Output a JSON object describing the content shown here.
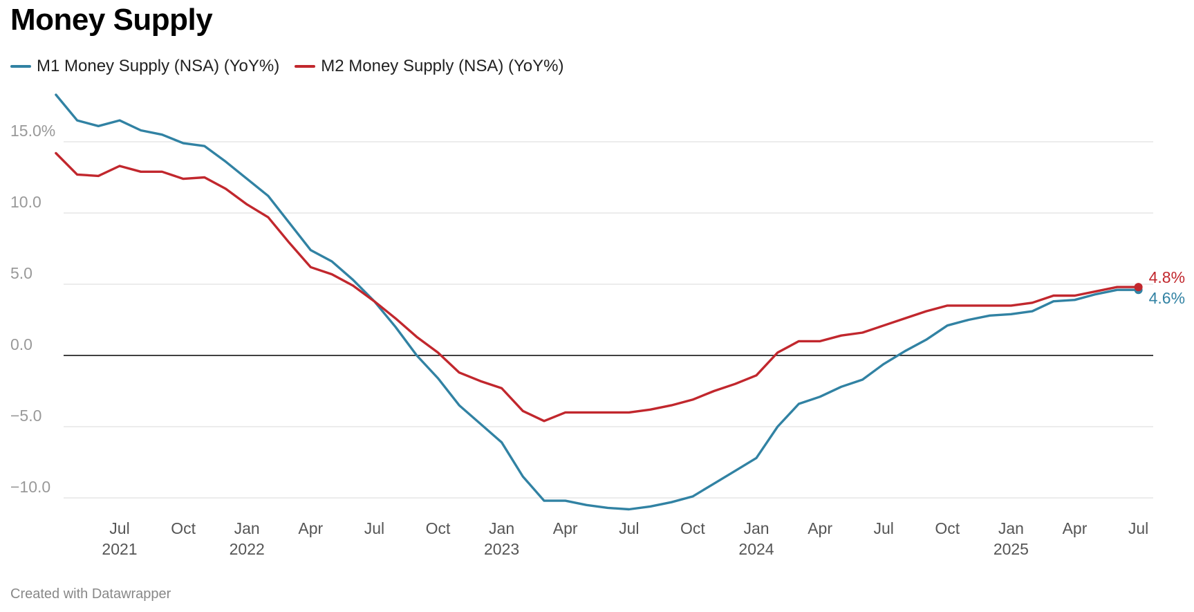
{
  "title": "Money Supply",
  "footer": "Created with Datawrapper",
  "colors": {
    "m1": "#3182a3",
    "m2": "#c1272d",
    "grid": "#e5e5e5",
    "zero": "#000000"
  },
  "chart_data": {
    "type": "line",
    "title": "Money Supply",
    "xlabel": "",
    "ylabel": "",
    "ylim": [
      -10.8,
      18.3
    ],
    "grid": true,
    "legend": "top-left",
    "y_ticks": [
      {
        "value": 15,
        "label": "15.0%"
      },
      {
        "value": 10,
        "label": "10.0"
      },
      {
        "value": 5,
        "label": "5.0"
      },
      {
        "value": 0,
        "label": "0.0"
      },
      {
        "value": -5,
        "label": "−5.0"
      },
      {
        "value": -10,
        "label": "−10.0"
      }
    ],
    "x_ticks": [
      {
        "date": "2021-07",
        "label": "Jul",
        "year": "2021"
      },
      {
        "date": "2021-10",
        "label": "Oct",
        "year": ""
      },
      {
        "date": "2022-01",
        "label": "Jan",
        "year": "2022"
      },
      {
        "date": "2022-04",
        "label": "Apr",
        "year": ""
      },
      {
        "date": "2022-07",
        "label": "Jul",
        "year": ""
      },
      {
        "date": "2022-10",
        "label": "Oct",
        "year": ""
      },
      {
        "date": "2023-01",
        "label": "Jan",
        "year": "2023"
      },
      {
        "date": "2023-04",
        "label": "Apr",
        "year": ""
      },
      {
        "date": "2023-07",
        "label": "Jul",
        "year": ""
      },
      {
        "date": "2023-10",
        "label": "Oct",
        "year": ""
      },
      {
        "date": "2024-01",
        "label": "Jan",
        "year": "2024"
      },
      {
        "date": "2024-04",
        "label": "Apr",
        "year": ""
      },
      {
        "date": "2024-07",
        "label": "Jul",
        "year": ""
      },
      {
        "date": "2024-10",
        "label": "Oct",
        "year": ""
      },
      {
        "date": "2025-01",
        "label": "Jan",
        "year": "2025"
      },
      {
        "date": "2025-04",
        "label": "Apr",
        "year": ""
      },
      {
        "date": "2025-07",
        "label": "Jul",
        "year": ""
      }
    ],
    "x": [
      "2021-04",
      "2021-05",
      "2021-06",
      "2021-07",
      "2021-08",
      "2021-09",
      "2021-10",
      "2021-11",
      "2021-12",
      "2022-01",
      "2022-02",
      "2022-03",
      "2022-04",
      "2022-05",
      "2022-06",
      "2022-07",
      "2022-08",
      "2022-09",
      "2022-10",
      "2022-11",
      "2022-12",
      "2023-01",
      "2023-02",
      "2023-03",
      "2023-04",
      "2023-05",
      "2023-06",
      "2023-07",
      "2023-08",
      "2023-09",
      "2023-10",
      "2023-11",
      "2023-12",
      "2024-01",
      "2024-02",
      "2024-03",
      "2024-04",
      "2024-05",
      "2024-06",
      "2024-07",
      "2024-08",
      "2024-09",
      "2024-10",
      "2024-11",
      "2024-12",
      "2025-01",
      "2025-02",
      "2025-03",
      "2025-04",
      "2025-05",
      "2025-06",
      "2025-07"
    ],
    "series": [
      {
        "name": "M1 Money Supply (NSA) (YoY%)",
        "color": "#3182a3",
        "end_label": "4.6%",
        "values": [
          18.3,
          16.5,
          16.1,
          16.5,
          15.8,
          15.5,
          14.9,
          14.7,
          13.6,
          12.4,
          11.2,
          9.3,
          7.4,
          6.6,
          5.3,
          3.8,
          2.0,
          0.0,
          -1.6,
          -3.5,
          -4.8,
          -6.1,
          -8.5,
          -10.2,
          -10.2,
          -10.5,
          -10.7,
          -10.8,
          -10.6,
          -10.3,
          -9.9,
          -9.0,
          -8.1,
          -7.2,
          -5.0,
          -3.4,
          -2.9,
          -2.2,
          -1.7,
          -0.6,
          0.3,
          1.1,
          2.1,
          2.5,
          2.8,
          2.9,
          3.1,
          3.8,
          3.9,
          4.3,
          4.6,
          4.6
        ]
      },
      {
        "name": "M2 Money Supply (NSA) (YoY%)",
        "color": "#c1272d",
        "end_label": "4.8%",
        "values": [
          14.2,
          12.7,
          12.6,
          13.3,
          12.9,
          12.9,
          12.4,
          12.5,
          11.7,
          10.6,
          9.7,
          7.9,
          6.2,
          5.7,
          4.9,
          3.8,
          2.6,
          1.3,
          0.2,
          -1.2,
          -1.8,
          -2.3,
          -3.9,
          -4.6,
          -4.0,
          -4.0,
          -4.0,
          -4.0,
          -3.8,
          -3.5,
          -3.1,
          -2.5,
          -2.0,
          -1.4,
          0.2,
          1.0,
          1.0,
          1.4,
          1.6,
          2.1,
          2.6,
          3.1,
          3.5,
          3.5,
          3.5,
          3.5,
          3.7,
          4.2,
          4.2,
          4.5,
          4.8,
          4.8
        ]
      }
    ]
  }
}
